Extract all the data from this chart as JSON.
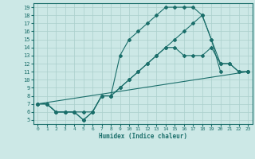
{
  "xlabel": "Humidex (Indice chaleur)",
  "xlim": [
    -0.5,
    23.5
  ],
  "ylim": [
    4.5,
    19.5
  ],
  "xticks": [
    0,
    1,
    2,
    3,
    4,
    5,
    6,
    7,
    8,
    9,
    10,
    11,
    12,
    13,
    14,
    15,
    16,
    17,
    18,
    19,
    20,
    21,
    22,
    23
  ],
  "yticks": [
    5,
    6,
    7,
    8,
    9,
    10,
    11,
    12,
    13,
    14,
    15,
    16,
    17,
    18,
    19
  ],
  "bg_color": "#cce8e6",
  "line_color": "#1a6e6a",
  "grid_color": "#aacfcc",
  "lines": [
    {
      "x": [
        0,
        1,
        2,
        3,
        4,
        5,
        6,
        7,
        8,
        9,
        10,
        11,
        12,
        13,
        14,
        15,
        16,
        17,
        18,
        19,
        20
      ],
      "y": [
        7,
        7,
        6,
        6,
        6,
        5,
        6,
        8,
        8,
        13,
        15,
        16,
        17,
        18,
        19,
        19,
        19,
        19,
        18,
        15,
        11
      ]
    },
    {
      "x": [
        0,
        1,
        2,
        3,
        4,
        5,
        6,
        7,
        8,
        9,
        10,
        11,
        12,
        13,
        14,
        15,
        16,
        17,
        18,
        19,
        20,
        21,
        22,
        23
      ],
      "y": [
        7,
        7,
        6,
        6,
        6,
        6,
        6,
        8,
        8,
        9,
        10,
        11,
        12,
        13,
        14,
        14,
        13,
        13,
        13,
        14,
        12,
        12,
        11,
        11
      ]
    },
    {
      "x": [
        0,
        23
      ],
      "y": [
        7,
        11
      ]
    },
    {
      "x": [
        0,
        1,
        2,
        3,
        4,
        5,
        6,
        7,
        8,
        9,
        10,
        11,
        12,
        13,
        14,
        15,
        16,
        17,
        18,
        19,
        20,
        21,
        22,
        23
      ],
      "y": [
        7,
        7,
        6,
        6,
        6,
        5,
        6,
        8,
        8,
        9,
        10,
        11,
        12,
        13,
        14,
        15,
        16,
        17,
        18,
        15,
        12,
        12,
        11,
        11
      ]
    }
  ]
}
